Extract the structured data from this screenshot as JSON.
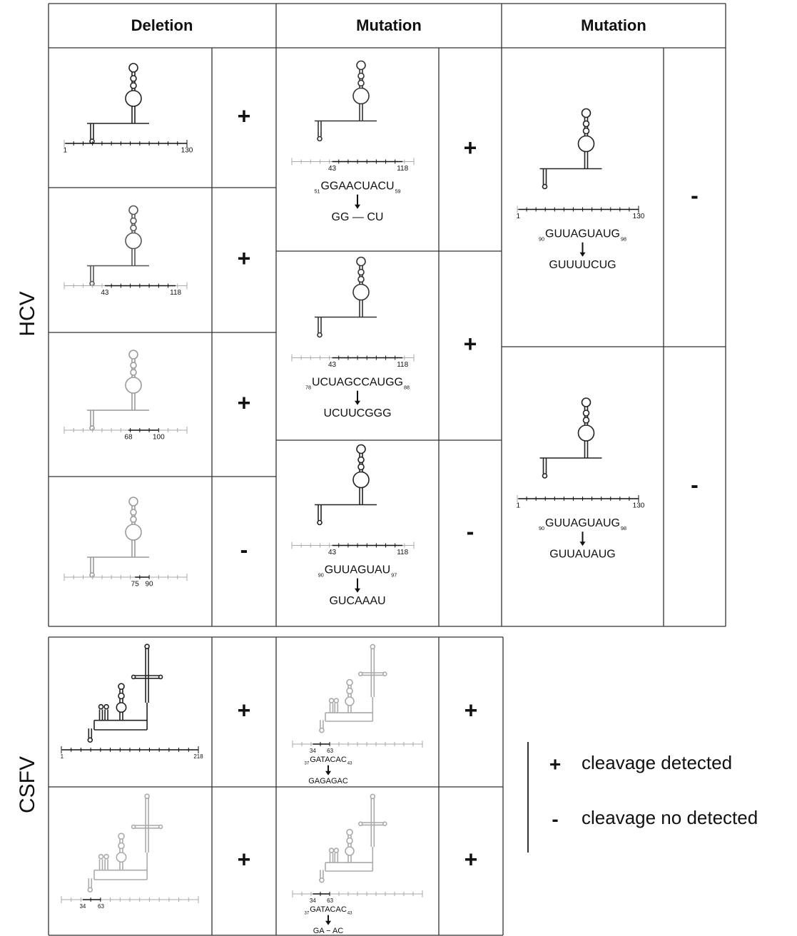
{
  "header": [
    "Deletion",
    "Mutation",
    "Mutation"
  ],
  "row_labels": [
    "HCV",
    "CSFV"
  ],
  "hcv": {
    "deletion": [
      {
        "axis_labels": [
          1,
          130
        ],
        "result": "+"
      },
      {
        "axis_labels": [
          43,
          118
        ],
        "result": "+"
      },
      {
        "axis_labels": [
          68,
          100
        ],
        "result": "+"
      },
      {
        "axis_labels": [
          75,
          90
        ],
        "result": "-"
      }
    ],
    "mutation_1": [
      {
        "axis_labels": [
          43,
          118
        ],
        "from": "GGAACUACU",
        "start": 51,
        "end": 59,
        "to": "GG — CU",
        "result": "+"
      },
      {
        "axis_labels": [
          43,
          118
        ],
        "from": "UCUAGCCAUGG",
        "start": 78,
        "end": 88,
        "to": "UCUUCGGG",
        "result": "+"
      },
      {
        "axis_labels": [
          43,
          118
        ],
        "from": "GUUAGUAU",
        "start": 90,
        "end": 97,
        "to": "GUCAAAU",
        "result": "-"
      }
    ],
    "mutation_2": [
      {
        "axis_labels": [
          1,
          130
        ],
        "from": "GUUAGUAUG",
        "start": 90,
        "end": 98,
        "to": "GUUUUCUG",
        "result": "-"
      },
      {
        "axis_labels": [
          1,
          130
        ],
        "from": "GUUAGUAUG",
        "start": 90,
        "end": 98,
        "to": "GUUAUAUG",
        "result": "-"
      }
    ]
  },
  "csfv": {
    "deletion": [
      {
        "axis_labels": [
          1,
          218
        ],
        "result": "+"
      },
      {
        "axis_labels": [
          34,
          63
        ],
        "result": "+"
      }
    ],
    "mutation": [
      {
        "axis_labels": [
          34,
          63
        ],
        "from": "GATACAC",
        "start": 37,
        "end": 43,
        "to": "GAGAGAC",
        "result": "+"
      },
      {
        "axis_labels": [
          34,
          63
        ],
        "from": "GATACAC",
        "start": 37,
        "end": 43,
        "to": "GA − AC",
        "result": "+"
      }
    ]
  },
  "legend": [
    {
      "symbol": "+",
      "label": "cleavage detected"
    },
    {
      "symbol": "-",
      "label": "cleavage no detected"
    }
  ]
}
